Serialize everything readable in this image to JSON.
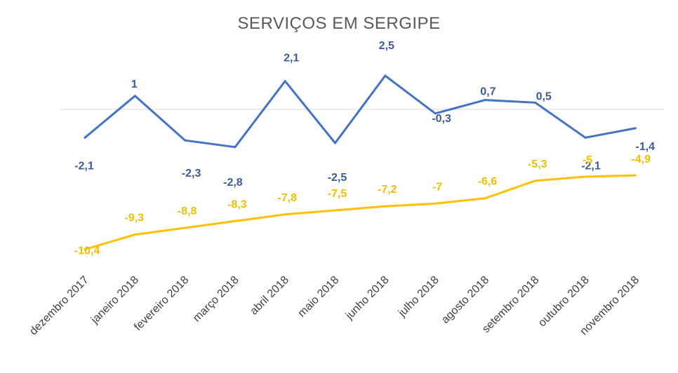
{
  "chart_data": {
    "type": "line",
    "title": "SERVIÇOS EM SERGIPE",
    "categories": [
      "dezembro 2017",
      "janeiro 2018",
      "fevereiro 2018",
      "março 2018",
      "abril 2018",
      "maio 2018",
      "junho 2018",
      "julho 2018",
      "agosto 2018",
      "setembro 2018",
      "outubro 2018",
      "novembro 2018"
    ],
    "series": [
      {
        "values": [
          -2.1,
          1,
          -2.3,
          -2.8,
          2.1,
          -2.5,
          2.5,
          -0.3,
          0.7,
          0.5,
          -2.1,
          -1.4
        ],
        "labels": [
          "-2,1",
          "1",
          "-2,3",
          "-2,8",
          "2,1",
          "-2,5",
          "2,5",
          "-0,3",
          "0,7",
          "0,5",
          "-2,1",
          "-1,4"
        ],
        "color": "#4472c4"
      },
      {
        "values": [
          -10.4,
          -9.3,
          -8.8,
          -8.3,
          -7.8,
          -7.5,
          -7.2,
          -7,
          -6.6,
          -5.3,
          -5,
          -4.9
        ],
        "labels": [
          "-10,4",
          "-9,3",
          "-8,8",
          "-8,3",
          "-7,8",
          "-7,5",
          "-7,2",
          "-7",
          "-6,6",
          "-5,3",
          "-5",
          "-4,9"
        ],
        "color": "#ffc000"
      }
    ],
    "xlabel": "",
    "ylabel": "",
    "grid": false,
    "legend": "none"
  }
}
